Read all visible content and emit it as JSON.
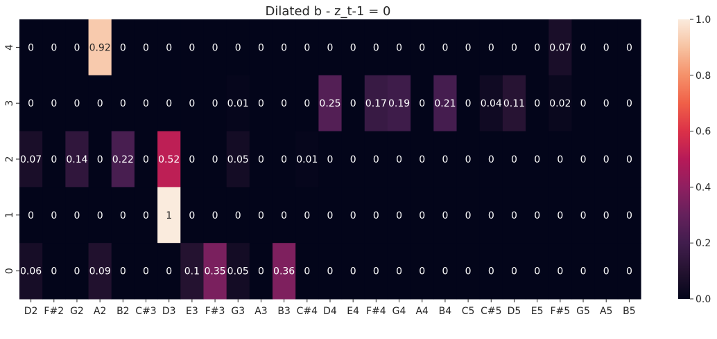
{
  "chart_data": {
    "type": "heatmap",
    "title": "Dilated b - z_t-1 = 0",
    "xlabel": "",
    "ylabel": "",
    "x_categories": [
      "D2",
      "F#2",
      "G2",
      "A2",
      "B2",
      "C#3",
      "D3",
      "E3",
      "F#3",
      "G3",
      "A3",
      "B3",
      "C#4",
      "D4",
      "E4",
      "F#4",
      "G4",
      "A4",
      "B4",
      "C5",
      "C#5",
      "D5",
      "E5",
      "F#5",
      "G5",
      "A5",
      "B5"
    ],
    "y_categories": [
      "4",
      "3",
      "2",
      "1",
      "0"
    ],
    "values": [
      [
        0,
        0,
        0,
        0.92,
        0,
        0,
        0,
        0,
        0,
        0,
        0,
        0,
        0,
        0,
        0,
        0,
        0,
        0,
        0,
        0,
        0,
        0,
        0,
        0.07,
        0,
        0,
        0
      ],
      [
        0,
        0,
        0,
        0,
        0,
        0,
        0,
        0,
        0,
        0.01,
        0,
        0,
        0,
        0.25,
        0,
        0.17,
        0.19,
        0,
        0.21,
        0,
        0.04,
        0.11,
        0,
        0.02,
        0,
        0,
        0
      ],
      [
        0.07,
        0,
        0.14,
        0,
        0.22,
        0,
        0.52,
        0,
        0,
        0.05,
        0,
        0,
        0.01,
        0,
        0,
        0,
        0,
        0,
        0,
        0,
        0,
        0,
        0,
        0,
        0,
        0,
        0
      ],
      [
        0,
        0,
        0,
        0,
        0,
        0,
        1,
        0,
        0,
        0,
        0,
        0,
        0,
        0,
        0,
        0,
        0,
        0,
        0,
        0,
        0,
        0,
        0,
        0,
        0,
        0,
        0
      ],
      [
        0.06,
        0,
        0,
        0.09,
        0,
        0,
        0,
        0.1,
        0.35,
        0.05,
        0,
        0.36,
        0,
        0,
        0,
        0,
        0,
        0,
        0,
        0,
        0,
        0,
        0,
        0,
        0,
        0,
        0
      ]
    ],
    "labels": [
      [
        "0",
        "0",
        "0",
        "0.92",
        "0",
        "0",
        "0",
        "0",
        "0",
        "0",
        "0",
        "0",
        "0",
        "0",
        "0",
        "0",
        "0",
        "0",
        "0",
        "0",
        "0",
        "0",
        "0",
        "0.07",
        "0",
        "0",
        "0"
      ],
      [
        "0",
        "0",
        "0",
        "0",
        "0",
        "0",
        "0",
        "0",
        "0",
        "0.01",
        "0",
        "0",
        "0",
        "0.25",
        "0",
        "0.17",
        "0.19",
        "0",
        "0.21",
        "0",
        "0.04",
        "0.11",
        "0",
        "0.02",
        "0",
        "0",
        "0"
      ],
      [
        "0.07",
        "0",
        "0.14",
        "0",
        "0.22",
        "0",
        "0.52",
        "0",
        "0",
        "0.05",
        "0",
        "0",
        "0.01",
        "0",
        "0",
        "0",
        "0",
        "0",
        "0",
        "0",
        "0",
        "0",
        "0",
        "0",
        "0",
        "0",
        "0"
      ],
      [
        "0",
        "0",
        "0",
        "0",
        "0",
        "0",
        "1",
        "0",
        "0",
        "0",
        "0",
        "0",
        "0",
        "0",
        "0",
        "0",
        "0",
        "0",
        "0",
        "0",
        "0",
        "0",
        "0",
        "0",
        "0",
        "0",
        "0"
      ],
      [
        "0.06",
        "0",
        "0",
        "0.09",
        "0",
        "0",
        "0",
        "0.1",
        "0.35",
        "0.05",
        "0",
        "0.36",
        "0",
        "0",
        "0",
        "0",
        "0",
        "0",
        "0",
        "0",
        "0",
        "0",
        "0",
        "0",
        "0",
        "0",
        "0"
      ]
    ],
    "colorbar": {
      "range": [
        0,
        1
      ],
      "ticks": [
        0,
        0.2,
        0.4,
        0.6,
        0.8,
        1.0
      ],
      "tick_labels": [
        "0.0",
        "0.2",
        "0.4",
        "0.6",
        "0.8",
        "1.0"
      ]
    },
    "colormap": "rocket",
    "grid": false,
    "legend": "colorbar-right"
  }
}
